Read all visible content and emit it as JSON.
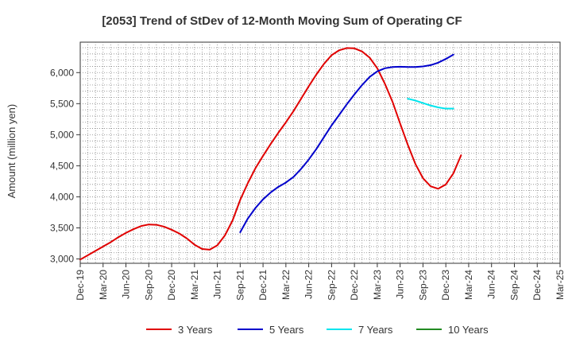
{
  "chart_data": {
    "type": "line",
    "title": "[2053]  Trend of StDev of 12-Month Moving Sum of Operating CF",
    "ylabel": "Amount (million yen)",
    "xlabel": "",
    "x_start": "2019-12",
    "x_end": "2025-03",
    "x_tick_labels": [
      "Dec-19",
      "Mar-20",
      "Jun-20",
      "Sep-20",
      "Dec-20",
      "Mar-21",
      "Jun-21",
      "Sep-21",
      "Dec-21",
      "Mar-22",
      "Jun-22",
      "Sep-22",
      "Dec-22",
      "Mar-23",
      "Jun-23",
      "Sep-23",
      "Dec-23",
      "Mar-24",
      "Jun-24",
      "Sep-24",
      "Dec-24",
      "Mar-25"
    ],
    "y_ticks": [
      "3,000",
      "3,500",
      "4,000",
      "4,500",
      "5,000",
      "5,500",
      "6,000"
    ],
    "y_tick_values": [
      3000,
      3500,
      4000,
      4500,
      5000,
      5500,
      6000
    ],
    "ylim": [
      2930,
      6490
    ],
    "grid": true,
    "legend_position": "bottom",
    "series": [
      {
        "name": "3 Years",
        "color": "#e00000",
        "points": [
          [
            "2019-12",
            2990
          ],
          [
            "2020-01",
            3060
          ],
          [
            "2020-02",
            3130
          ],
          [
            "2020-03",
            3200
          ],
          [
            "2020-04",
            3270
          ],
          [
            "2020-05",
            3350
          ],
          [
            "2020-06",
            3420
          ],
          [
            "2020-07",
            3480
          ],
          [
            "2020-08",
            3530
          ],
          [
            "2020-09",
            3555
          ],
          [
            "2020-10",
            3550
          ],
          [
            "2020-11",
            3520
          ],
          [
            "2020-12",
            3470
          ],
          [
            "2021-01",
            3410
          ],
          [
            "2021-02",
            3330
          ],
          [
            "2021-03",
            3230
          ],
          [
            "2021-04",
            3160
          ],
          [
            "2021-05",
            3150
          ],
          [
            "2021-06",
            3220
          ],
          [
            "2021-07",
            3380
          ],
          [
            "2021-08",
            3620
          ],
          [
            "2021-09",
            3950
          ],
          [
            "2021-10",
            4220
          ],
          [
            "2021-11",
            4460
          ],
          [
            "2021-12",
            4660
          ],
          [
            "2022-01",
            4850
          ],
          [
            "2022-02",
            5030
          ],
          [
            "2022-03",
            5200
          ],
          [
            "2022-04",
            5380
          ],
          [
            "2022-05",
            5580
          ],
          [
            "2022-06",
            5780
          ],
          [
            "2022-07",
            5970
          ],
          [
            "2022-08",
            6140
          ],
          [
            "2022-09",
            6280
          ],
          [
            "2022-10",
            6360
          ],
          [
            "2022-11",
            6395
          ],
          [
            "2022-12",
            6390
          ],
          [
            "2023-01",
            6340
          ],
          [
            "2023-02",
            6240
          ],
          [
            "2023-03",
            6070
          ],
          [
            "2023-04",
            5820
          ],
          [
            "2023-05",
            5530
          ],
          [
            "2023-06",
            5180
          ],
          [
            "2023-07",
            4840
          ],
          [
            "2023-08",
            4530
          ],
          [
            "2023-09",
            4300
          ],
          [
            "2023-10",
            4170
          ],
          [
            "2023-11",
            4130
          ],
          [
            "2023-12",
            4200
          ],
          [
            "2024-01",
            4380
          ],
          [
            "2024-02",
            4670
          ]
        ]
      },
      {
        "name": "5 Years",
        "color": "#0000cc",
        "points": [
          [
            "2021-09",
            3430
          ],
          [
            "2021-10",
            3650
          ],
          [
            "2021-11",
            3820
          ],
          [
            "2021-12",
            3960
          ],
          [
            "2022-01",
            4070
          ],
          [
            "2022-02",
            4160
          ],
          [
            "2022-03",
            4230
          ],
          [
            "2022-04",
            4320
          ],
          [
            "2022-05",
            4450
          ],
          [
            "2022-06",
            4600
          ],
          [
            "2022-07",
            4770
          ],
          [
            "2022-08",
            4960
          ],
          [
            "2022-09",
            5150
          ],
          [
            "2022-10",
            5320
          ],
          [
            "2022-11",
            5490
          ],
          [
            "2022-12",
            5650
          ],
          [
            "2023-01",
            5800
          ],
          [
            "2023-02",
            5930
          ],
          [
            "2023-03",
            6020
          ],
          [
            "2023-04",
            6070
          ],
          [
            "2023-05",
            6090
          ],
          [
            "2023-06",
            6095
          ],
          [
            "2023-07",
            6090
          ],
          [
            "2023-08",
            6090
          ],
          [
            "2023-09",
            6100
          ],
          [
            "2023-10",
            6120
          ],
          [
            "2023-11",
            6160
          ],
          [
            "2023-12",
            6220
          ],
          [
            "2024-01",
            6290
          ]
        ]
      },
      {
        "name": "7 Years",
        "color": "#00e5ee",
        "points": [
          [
            "2023-07",
            5580
          ],
          [
            "2023-08",
            5550
          ],
          [
            "2023-09",
            5510
          ],
          [
            "2023-10",
            5470
          ],
          [
            "2023-11",
            5440
          ],
          [
            "2023-12",
            5420
          ],
          [
            "2024-01",
            5420
          ]
        ]
      },
      {
        "name": "10 Years",
        "color": "#228b22",
        "points": []
      }
    ]
  }
}
